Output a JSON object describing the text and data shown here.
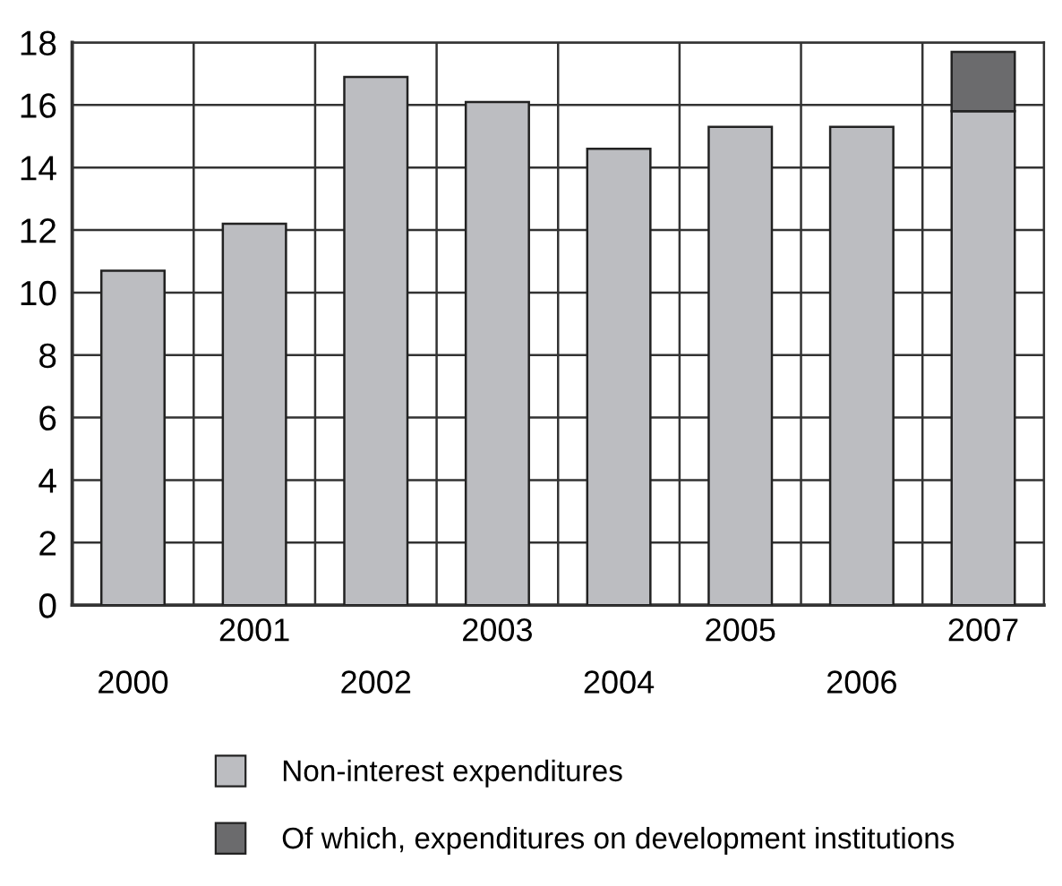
{
  "chart_data": {
    "type": "bar",
    "stacked": true,
    "categories": [
      "2000",
      "2001",
      "2002",
      "2003",
      "2004",
      "2005",
      "2006",
      "2007"
    ],
    "series": [
      {
        "name": "Non-interest expenditures",
        "color": "#bcbdc1",
        "values": [
          10.7,
          12.2,
          16.9,
          16.1,
          14.6,
          15.3,
          15.3,
          15.8
        ]
      },
      {
        "name": "Of which, expenditures on development institutions",
        "color": "#6b6b6d",
        "values": [
          null,
          null,
          null,
          null,
          null,
          null,
          null,
          1.9
        ]
      }
    ],
    "ylim": [
      0,
      18
    ],
    "yticks": [
      0,
      2,
      4,
      6,
      8,
      10,
      12,
      14,
      16,
      18
    ],
    "grid": true,
    "legend": "bottom"
  }
}
